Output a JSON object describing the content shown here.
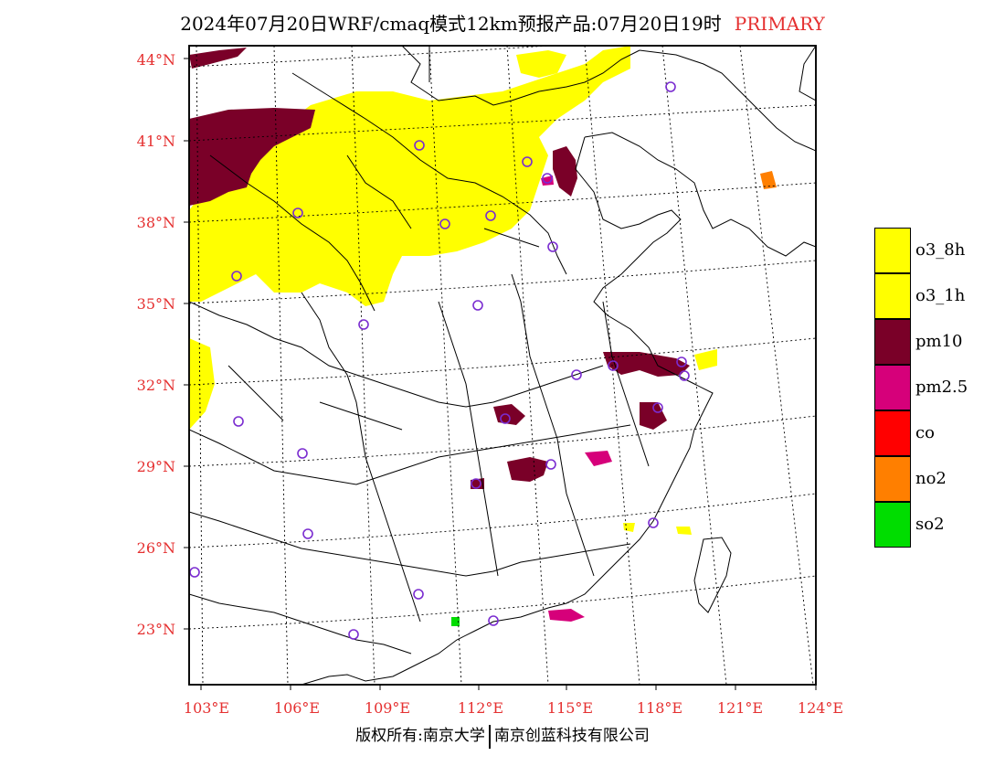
{
  "title": {
    "main": "2024年07月20日WRF/cmaq模式12km预报产品:07月20日19时",
    "tag": "PRIMARY"
  },
  "axes": {
    "lat_labels": [
      "44°N",
      "41°N",
      "38°N",
      "35°N",
      "32°N",
      "29°N",
      "26°N",
      "23°N"
    ],
    "lon_labels": [
      "103°E",
      "106°E",
      "109°E",
      "112°E",
      "115°E",
      "118°E",
      "121°E",
      "124°E"
    ]
  },
  "legend": [
    {
      "label": "o3_8h",
      "color": "#ffff00"
    },
    {
      "label": "o3_1h",
      "color": "#ffff00"
    },
    {
      "label": "pm10",
      "color": "#7a0028"
    },
    {
      "label": "pm2.5",
      "color": "#d6007a"
    },
    {
      "label": "co",
      "color": "#ff0000"
    },
    {
      "label": "no2",
      "color": "#ff7f00"
    },
    {
      "label": "so2",
      "color": "#00dd00"
    }
  ],
  "footer": {
    "left": "版权所有:南京大学",
    "right": "南京创蓝科技有限公司"
  }
}
